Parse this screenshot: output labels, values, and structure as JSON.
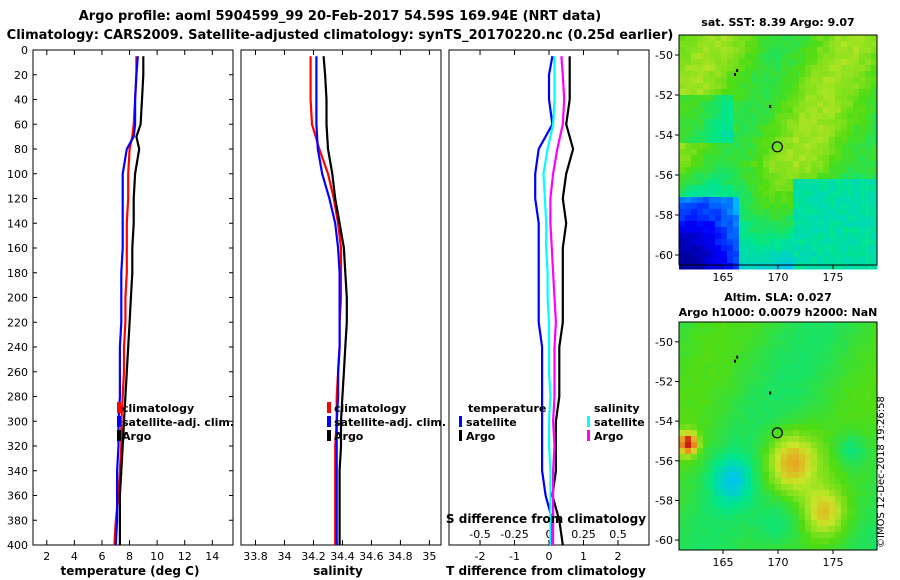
{
  "header": {
    "title1": "Argo profile: aoml 5904599_99 20-Feb-2017 54.59S 169.94E (NRT data)",
    "title2": "Climatology: CARS2009. Satellite-adjusted climatology: synTS_20170220.nc (0.25d earlier)"
  },
  "colors": {
    "climatology": "#ff0000",
    "satellite": "#0000ff",
    "argo": "#000000",
    "sat_s": "#00ffff",
    "argo_s": "#ff00ff"
  },
  "watermark": "©IMOS 12-Dec-2018 19:26:58",
  "chart_data": [
    {
      "id": "temperature",
      "type": "line",
      "xlabel": "temperature (deg C)",
      "xticks": [
        "2",
        "4",
        "6",
        "8",
        "10",
        "12",
        "14"
      ],
      "xlim": [
        1,
        15.5
      ],
      "ylim": [
        0,
        400
      ],
      "yticks": [
        "0",
        "20",
        "40",
        "60",
        "80",
        "100",
        "120",
        "140",
        "160",
        "180",
        "200",
        "220",
        "240",
        "260",
        "280",
        "300",
        "320",
        "340",
        "360",
        "380",
        "400"
      ],
      "legend": [
        "climatology",
        "satellite-adj. clim.",
        "Argo"
      ],
      "depth": [
        5,
        20,
        40,
        60,
        70,
        80,
        100,
        120,
        140,
        160,
        180,
        200,
        220,
        240,
        260,
        280,
        300,
        320,
        340,
        360,
        380,
        400
      ],
      "series": [
        {
          "name": "climatology",
          "color": "#ff0000",
          "values": [
            8.5,
            8.5,
            8.4,
            8.3,
            8.2,
            8.0,
            7.9,
            7.9,
            7.8,
            7.8,
            7.8,
            7.7,
            7.7,
            7.6,
            7.6,
            7.5,
            7.4,
            7.4,
            7.3,
            7.2,
            7.0,
            6.9
          ]
        },
        {
          "name": "satellite-adj. clim.",
          "color": "#0000ff",
          "values": [
            8.6,
            8.5,
            8.4,
            8.4,
            8.3,
            7.8,
            7.5,
            7.5,
            7.5,
            7.5,
            7.4,
            7.4,
            7.4,
            7.3,
            7.3,
            7.3,
            7.2,
            7.2,
            7.1,
            7.1,
            7.1,
            7.0
          ]
        },
        {
          "name": "Argo",
          "color": "#000000",
          "values": [
            9.0,
            9.0,
            8.9,
            8.8,
            8.5,
            8.7,
            8.4,
            8.3,
            8.3,
            8.2,
            8.2,
            8.1,
            8.0,
            7.9,
            7.8,
            7.7,
            7.6,
            7.5,
            7.4,
            7.3,
            7.3,
            7.3
          ]
        }
      ]
    },
    {
      "id": "salinity",
      "type": "line",
      "xlabel": "salinity",
      "xticks": [
        "33.8",
        "34",
        "34.2",
        "34.4",
        "34.6",
        "34.8",
        "35"
      ],
      "xlim": [
        33.7,
        35.08
      ],
      "ylim": [
        0,
        400
      ],
      "legend": [
        "climatology",
        "satellite-adj. clim.",
        "Argo"
      ],
      "depth": [
        5,
        20,
        40,
        60,
        80,
        100,
        120,
        140,
        160,
        180,
        200,
        220,
        240,
        260,
        280,
        300,
        320,
        340,
        360,
        380,
        400
      ],
      "series": [
        {
          "name": "climatology",
          "color": "#ff0000",
          "values": [
            34.18,
            34.18,
            34.18,
            34.19,
            34.24,
            34.3,
            34.34,
            34.37,
            34.39,
            34.39,
            34.39,
            34.38,
            34.38,
            34.37,
            34.36,
            34.36,
            34.35,
            34.35,
            34.35,
            34.35,
            34.35
          ]
        },
        {
          "name": "satellite-adj. clim.",
          "color": "#0000ff",
          "values": [
            34.22,
            34.22,
            34.22,
            34.22,
            34.23,
            34.26,
            34.31,
            34.35,
            34.37,
            34.38,
            34.38,
            34.38,
            34.38,
            34.37,
            34.37,
            34.36,
            34.36,
            34.36,
            34.36,
            34.36,
            34.36
          ]
        },
        {
          "name": "Argo",
          "color": "#000000",
          "values": [
            34.27,
            34.28,
            34.29,
            34.29,
            34.3,
            34.33,
            34.35,
            34.38,
            34.41,
            34.42,
            34.43,
            34.43,
            34.42,
            34.41,
            34.4,
            34.39,
            34.39,
            34.38,
            34.38,
            34.38,
            34.38
          ]
        }
      ]
    },
    {
      "id": "difference",
      "type": "line",
      "xlabel": "T difference from climatology",
      "xticks": [
        "-2",
        "-1",
        "0",
        "1",
        "2"
      ],
      "xlim": [
        -2.9,
        2.9
      ],
      "ylim": [
        0,
        400
      ],
      "s_label": "S difference from climatology",
      "s_ticks": [
        "-0.5",
        "-0.25",
        "0",
        "0.25",
        "0.5"
      ],
      "s_lim": [
        -0.725,
        0.725
      ],
      "legend_t": {
        "header": "temperature",
        "items": [
          "satellite",
          "Argo"
        ]
      },
      "legend_s": {
        "header": "salinity",
        "items": [
          "satellite",
          "Argo"
        ]
      },
      "depth": [
        5,
        20,
        40,
        60,
        80,
        100,
        120,
        140,
        160,
        180,
        200,
        220,
        240,
        260,
        280,
        300,
        320,
        340,
        360,
        380,
        400
      ],
      "series": [
        {
          "name": "T satellite",
          "color": "#0000ff",
          "axis": "t",
          "values": [
            0.1,
            0.0,
            0.0,
            0.1,
            -0.3,
            -0.4,
            -0.4,
            -0.3,
            -0.3,
            -0.3,
            -0.3,
            -0.3,
            -0.2,
            -0.2,
            -0.2,
            -0.2,
            -0.2,
            -0.2,
            -0.1,
            0.1,
            0.1
          ]
        },
        {
          "name": "T Argo",
          "color": "#000000",
          "axis": "t",
          "values": [
            0.6,
            0.6,
            0.6,
            0.5,
            0.7,
            0.5,
            0.4,
            0.5,
            0.4,
            0.4,
            0.4,
            0.4,
            0.3,
            0.3,
            0.3,
            0.2,
            0.2,
            0.2,
            0.1,
            0.3,
            0.4
          ]
        },
        {
          "name": "S satellite",
          "color": "#00ffff",
          "axis": "s",
          "values": [
            0.04,
            0.04,
            0.04,
            0.03,
            -0.01,
            -0.04,
            -0.03,
            -0.02,
            -0.02,
            -0.01,
            -0.01,
            0.0,
            0.0,
            0.0,
            0.01,
            0.0,
            0.0,
            0.01,
            0.01,
            0.01,
            0.01
          ]
        },
        {
          "name": "S Argo",
          "color": "#ff00ff",
          "axis": "s",
          "values": [
            0.09,
            0.1,
            0.11,
            0.1,
            0.06,
            0.03,
            0.01,
            0.01,
            0.02,
            0.03,
            0.04,
            0.05,
            0.04,
            0.04,
            0.04,
            0.03,
            0.04,
            0.03,
            0.03,
            0.03,
            0.03
          ]
        }
      ]
    },
    {
      "id": "sst-map",
      "type": "heatmap",
      "title": "sat. SST: 8.39 Argo: 9.07",
      "xticks": [
        "165",
        "170",
        "175"
      ],
      "yticks": [
        "-50",
        "-52",
        "-54",
        "-56",
        "-58",
        "-60"
      ],
      "xlim": [
        161,
        179
      ],
      "ylim": [
        -60.5,
        -49
      ],
      "marker": {
        "lon": 169.94,
        "lat": -54.59
      }
    },
    {
      "id": "sla-map",
      "type": "heatmap",
      "title": "Altim. SLA: 0.027",
      "subtitle": "Argo h1000: 0.0079 h2000: NaN",
      "xticks": [
        "165",
        "170",
        "175"
      ],
      "yticks": [
        "-50",
        "-52",
        "-54",
        "-56",
        "-58",
        "-60"
      ],
      "xlim": [
        161,
        179
      ],
      "ylim": [
        -60.5,
        -49
      ],
      "marker": {
        "lon": 169.94,
        "lat": -54.59
      }
    }
  ]
}
